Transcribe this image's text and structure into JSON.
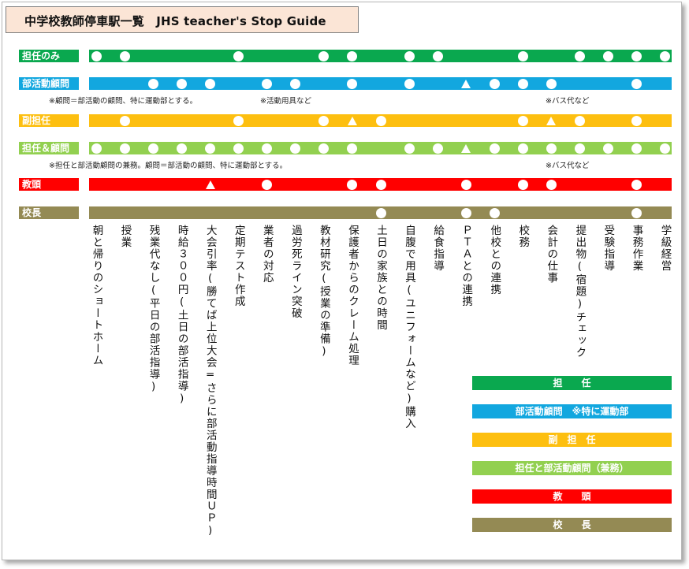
{
  "title": "中学校教師停車駅一覧　JHS teacher's Stop Guide",
  "colors": {
    "green": "#0aa84f",
    "blue": "#12a7df",
    "yellow": "#fdbf10",
    "lightgreen": "#92d050",
    "red": "#ff0000",
    "olive": "#948a54",
    "title_bg": "#fbe5d6"
  },
  "stations": [
    "朝と帰りのショートホーム",
    "授業",
    "残業代なし(平日の部活指導)",
    "時給３００円(土日の部活指導)",
    "大会引率(勝てば上位大会=さらに部活動指導時間ＵＰ)",
    "定期テスト作成",
    "業者の対応",
    "過労死ライン突破",
    "教材研究(授業の準備)",
    "保護者からのクレーム処理",
    "土日の家族との時間",
    "自腹で用具(ユニフォームなど)購入",
    "給食指導",
    "ＰＴＡとの連携",
    "他校との連携",
    "校務",
    "会計の仕事",
    "提出物(宿題)チェック",
    "受験指導",
    "事務作業",
    "学級経営"
  ],
  "lines": [
    {
      "label": "担任のみ",
      "color": "green",
      "stops": [
        1,
        1,
        0,
        0,
        0,
        1,
        0,
        0,
        1,
        1,
        0,
        1,
        1,
        0,
        0,
        1,
        0,
        1,
        1,
        1,
        1
      ]
    },
    {
      "label": "部活動顧問",
      "color": "blue",
      "stops": [
        0,
        0,
        1,
        1,
        1,
        0,
        1,
        1,
        0,
        1,
        0,
        1,
        0,
        2,
        1,
        1,
        1,
        0,
        0,
        1,
        0
      ]
    },
    {
      "label": "副担任",
      "color": "yellow",
      "stops": [
        0,
        1,
        0,
        0,
        0,
        1,
        0,
        0,
        1,
        2,
        1,
        0,
        0,
        0,
        0,
        1,
        2,
        1,
        0,
        1,
        0
      ]
    },
    {
      "label": "担任＆顧問",
      "color": "lightgreen",
      "stops": [
        1,
        1,
        1,
        1,
        1,
        1,
        1,
        1,
        1,
        1,
        0,
        1,
        1,
        2,
        1,
        1,
        1,
        1,
        1,
        1,
        1
      ]
    },
    {
      "label": "教頭",
      "color": "red",
      "stops": [
        0,
        0,
        0,
        0,
        2,
        0,
        1,
        0,
        0,
        1,
        1,
        0,
        0,
        1,
        0,
        1,
        1,
        0,
        0,
        1,
        0
      ]
    },
    {
      "label": "校長",
      "color": "olive",
      "stops": [
        0,
        0,
        0,
        0,
        0,
        0,
        0,
        0,
        0,
        0,
        1,
        0,
        0,
        1,
        1,
        0,
        0,
        0,
        0,
        1,
        0
      ]
    }
  ],
  "notes": {
    "blue_left": "※顧問＝部活動の顧問、特に運動部とする。",
    "blue_mid": "※活動用具など",
    "blue_right": "※バス代など",
    "lightgreen_left": "※担任と部活動顧問の兼務。顧問＝部活動の顧問、特に運動部とする。",
    "lightgreen_right": "※バス代など"
  },
  "legend": [
    {
      "label": "担　　任",
      "color": "green"
    },
    {
      "label": "部活動顧問　※特に運動部",
      "color": "blue"
    },
    {
      "label": "副　担　任",
      "color": "yellow"
    },
    {
      "label": "担任と部活動顧問（兼務）",
      "color": "lightgreen"
    },
    {
      "label": "教　　頭",
      "color": "red"
    },
    {
      "label": "校　　長",
      "color": "olive"
    }
  ]
}
